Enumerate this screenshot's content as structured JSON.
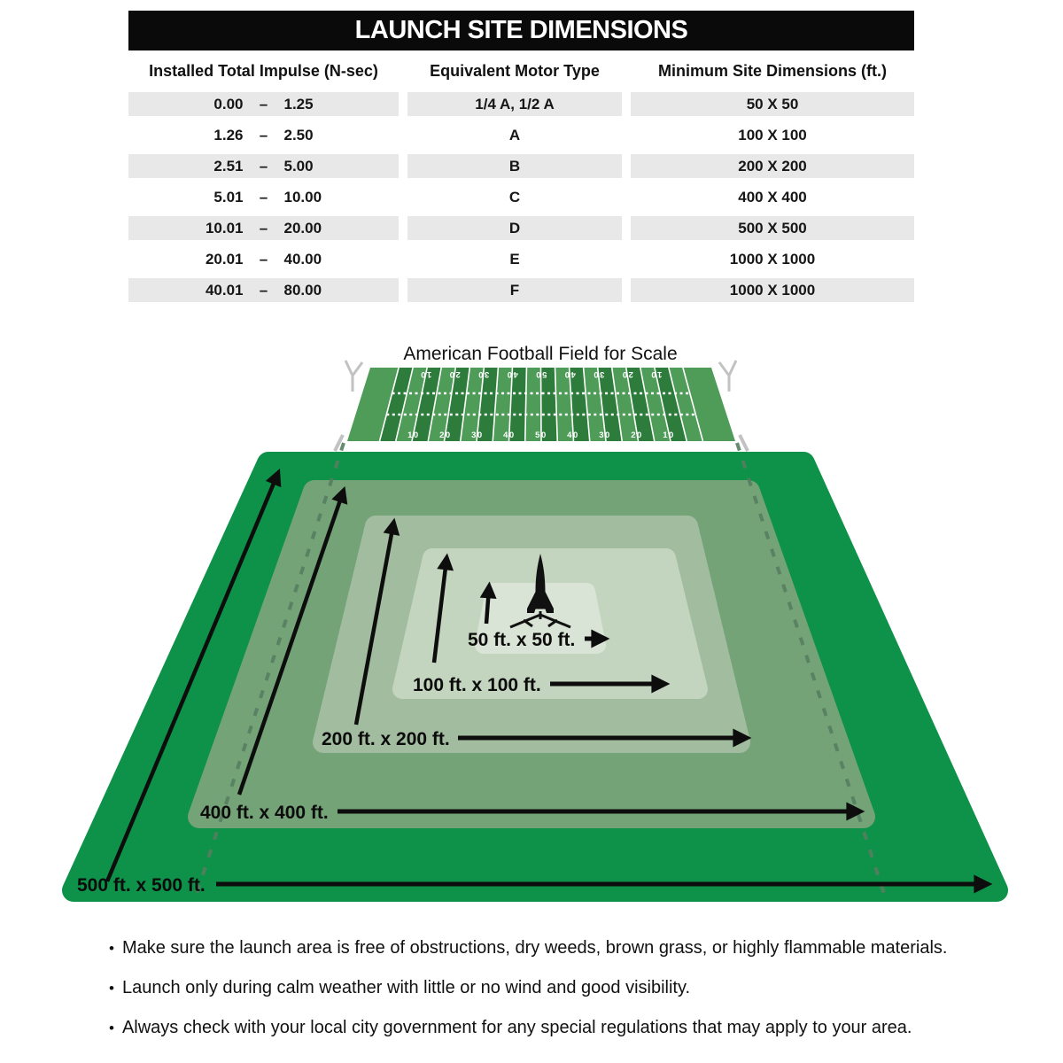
{
  "header": {
    "title": "LAUNCH SITE DIMENSIONS"
  },
  "table": {
    "range_separator": "–",
    "columns": [
      "Installed Total Impulse (N-sec)",
      "Equivalent Motor Type",
      "Minimum Site Dimensions (ft.)"
    ],
    "rows": [
      {
        "min": "0.00",
        "max": "1.25",
        "motor": "1/4 A, 1/2 A",
        "site": "50 X 50"
      },
      {
        "min": "1.26",
        "max": "2.50",
        "motor": "A",
        "site": "100 X 100"
      },
      {
        "min": "2.51",
        "max": "5.00",
        "motor": "B",
        "site": "200 X 200"
      },
      {
        "min": "5.01",
        "max": "10.00",
        "motor": "C",
        "site": "400 X 400"
      },
      {
        "min": "10.01",
        "max": "20.00",
        "motor": "D",
        "site": "500 X 500"
      },
      {
        "min": "20.01",
        "max": "40.00",
        "motor": "E",
        "site": "1000 X 1000"
      },
      {
        "min": "40.01",
        "max": "80.00",
        "motor": "F",
        "site": "1000 X 1000"
      }
    ]
  },
  "field": {
    "caption": "American Football Field for Scale",
    "yard_numbers": [
      "10",
      "20",
      "30",
      "40",
      "50",
      "40",
      "30",
      "20",
      "10"
    ]
  },
  "diagram": {
    "icon": "rocket-on-launch-pad",
    "zones": [
      {
        "label": "50 ft. x 50 ft."
      },
      {
        "label": "100 ft. x 100 ft."
      },
      {
        "label": "200 ft. x 200 ft."
      },
      {
        "label": "400 ft. x 400 ft."
      },
      {
        "label": "500 ft. x 500 ft."
      }
    ]
  },
  "notes": [
    {
      "bullet": "•",
      "text": "Make sure the launch area is free of obstructions, dry weeds, brown grass, or highly flammable materials."
    },
    {
      "bullet": "•",
      "text": "Launch only during calm weather with little or no wind and good visibility."
    },
    {
      "bullet": "•",
      "text": "Always check with your local city government for any special regulations that may apply to your area."
    }
  ],
  "colors": {
    "header_bg": "#0a0a0a",
    "header_text": "#ffffff",
    "row_shade": "#e8e8e8",
    "zone_500": "#0e9148",
    "zone_400": "#74a377",
    "zone_200": "#a2bc9f",
    "zone_100": "#c3d4bf",
    "zone_50": "#dae4d6",
    "field_dark": "#2e7c3c",
    "field_light": "#4f9b58",
    "goal_post": "#c2c2c2",
    "projection_dash": "#577e60",
    "ink": "#0d0d0d"
  }
}
